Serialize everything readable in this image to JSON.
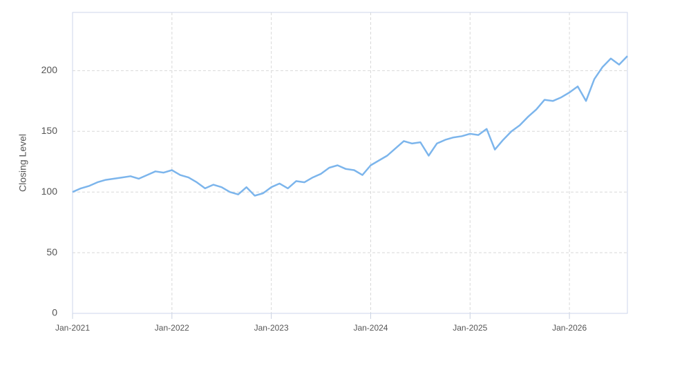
{
  "chart_data": {
    "type": "line",
    "y_label": "Closing Level",
    "x": [
      "2021-01",
      "2021-02",
      "2021-03",
      "2021-04",
      "2021-05",
      "2021-06",
      "2021-07",
      "2021-08",
      "2021-09",
      "2021-10",
      "2021-11",
      "2021-12",
      "2022-01",
      "2022-02",
      "2022-03",
      "2022-04",
      "2022-05",
      "2022-06",
      "2022-07",
      "2022-08",
      "2022-09",
      "2022-10",
      "2022-11",
      "2022-12",
      "2023-01",
      "2023-02",
      "2023-03",
      "2023-04",
      "2023-05",
      "2023-06",
      "2023-07",
      "2023-08",
      "2023-09",
      "2023-10",
      "2023-11",
      "2023-12",
      "2024-01",
      "2024-02",
      "2024-03",
      "2024-04",
      "2024-05",
      "2024-06",
      "2024-07",
      "2024-08",
      "2024-09",
      "2024-10",
      "2024-11",
      "2024-12",
      "2025-01",
      "2025-02",
      "2025-03",
      "2025-04",
      "2025-05",
      "2025-06",
      "2025-07",
      "2025-08",
      "2025-09",
      "2025-10",
      "2025-11",
      "2025-12",
      "2026-01",
      "2026-02",
      "2026-03",
      "2026-04",
      "2026-05",
      "2026-06",
      "2026-07",
      "2026-08"
    ],
    "series": [
      {
        "color": "#7cb5ec",
        "values": [
          100,
          103,
          105,
          108,
          110,
          111,
          112,
          113,
          111,
          114,
          117,
          116,
          118,
          114,
          112,
          108,
          103,
          106,
          104,
          100,
          98,
          104,
          97,
          99,
          104,
          107,
          103,
          109,
          108,
          112,
          115,
          120,
          122,
          119,
          118,
          114,
          122,
          126,
          130,
          136,
          142,
          140,
          141,
          130,
          140,
          143,
          145,
          146,
          148,
          147,
          152,
          135,
          143,
          150,
          155,
          162,
          168,
          176,
          175,
          178,
          182,
          187,
          175,
          193,
          203,
          210,
          205,
          212
        ]
      }
    ],
    "xlim": [
      "2021-01",
      "2026-08"
    ],
    "xticks": [
      {
        "value": "2021-01",
        "label": "Jan-2021"
      },
      {
        "value": "2022-01",
        "label": "Jan-2022"
      },
      {
        "value": "2023-01",
        "label": "Jan-2023"
      },
      {
        "value": "2024-01",
        "label": "Jan-2024"
      },
      {
        "value": "2025-01",
        "label": "Jan-2025"
      },
      {
        "value": "2026-01",
        "label": "Jan-2026"
      }
    ],
    "ylim": [
      0,
      248
    ],
    "yticks": [
      0,
      50,
      100,
      150,
      200
    ],
    "grid": true
  }
}
